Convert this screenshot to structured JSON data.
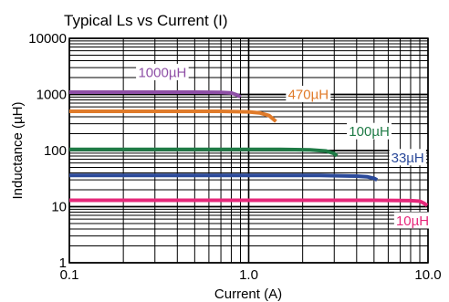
{
  "chart_data": {
    "type": "line",
    "title": "Typical Ls vs Current (I)",
    "xlabel": "Current (A)",
    "ylabel": "Inductance (µH)",
    "xscale": "log",
    "yscale": "log",
    "xlim": [
      0.1,
      10.0
    ],
    "ylim": [
      1,
      10000
    ],
    "grid": true,
    "xticks": [
      "0.1",
      "1.0",
      "10.0"
    ],
    "yticks": [
      "1",
      "10",
      "100",
      "1000",
      "10000"
    ],
    "series": [
      {
        "name": "1000µH",
        "color": "#8e4fa6",
        "x": [
          0.1,
          0.5,
          0.7,
          0.8,
          0.86,
          0.9
        ],
        "y": [
          1100,
          1100,
          1090,
          1060,
          980,
          900
        ]
      },
      {
        "name": "470µH",
        "color": "#e07b2a",
        "x": [
          0.1,
          0.7,
          1.0,
          1.15,
          1.3,
          1.42
        ],
        "y": [
          500,
          500,
          490,
          470,
          420,
          330
        ]
      },
      {
        "name": "100µH",
        "color": "#1e7a45",
        "x": [
          0.1,
          1.5,
          2.2,
          2.7,
          3.0,
          3.1
        ],
        "y": [
          105,
          105,
          103,
          98,
          88,
          80
        ]
      },
      {
        "name": "33µH",
        "color": "#2b4a9a",
        "x": [
          0.1,
          2.5,
          4.0,
          4.6,
          5.0,
          5.2
        ],
        "y": [
          36,
          36,
          35,
          34,
          32,
          30
        ]
      },
      {
        "name": "10µH",
        "color": "#e6287a",
        "x": [
          0.1,
          5.0,
          8.0,
          9.0,
          9.5,
          9.9
        ],
        "y": [
          13,
          13,
          12.8,
          12.5,
          11.5,
          10.5
        ]
      }
    ]
  }
}
